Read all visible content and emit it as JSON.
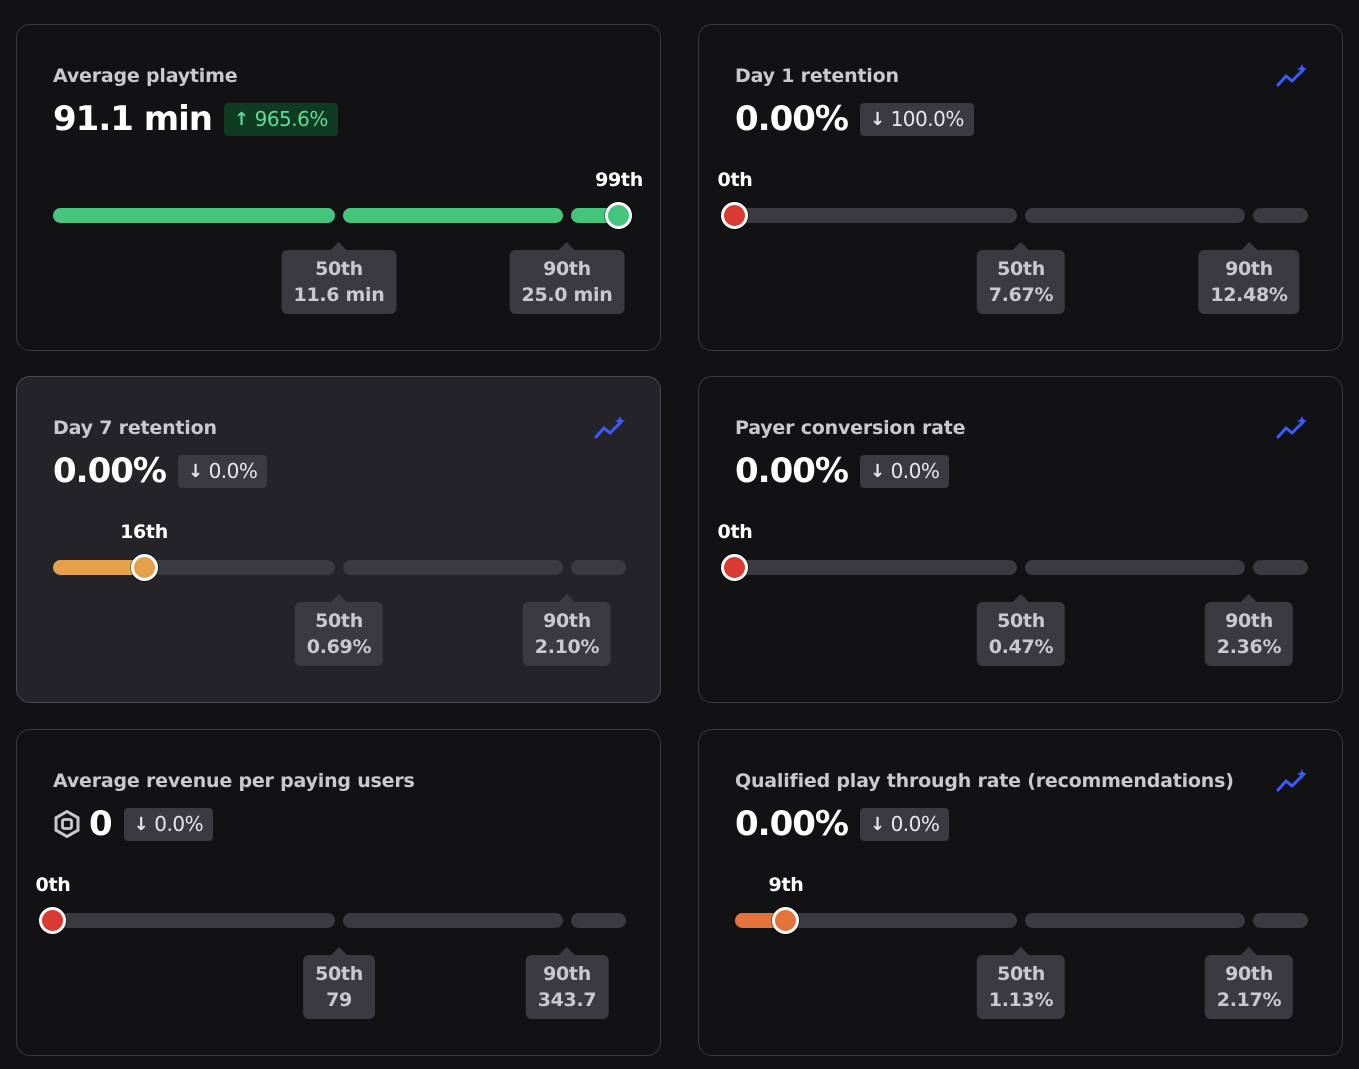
{
  "colors": {
    "green": "#44c47c",
    "red": "#d93b30",
    "amber": "#e5a04b",
    "orange": "#e3733a",
    "track": "#3a3a40",
    "trend_icon": "#3b5bff"
  },
  "cards": [
    {
      "title": "Average playtime",
      "value": "91.1 min",
      "delta": "965.6%",
      "delta_direction": "up",
      "percentile_label": "99th",
      "percentile_value": 99,
      "p50": {
        "label": "50th",
        "value": "11.6 min"
      },
      "p90": {
        "label": "90th",
        "value": "25.0 min"
      },
      "show_trend_icon": false
    },
    {
      "title": "Day 1 retention",
      "value": "0.00%",
      "delta": "100.0%",
      "delta_direction": "down",
      "percentile_label": "0th",
      "percentile_value": 0,
      "p50": {
        "label": "50th",
        "value": "7.67%"
      },
      "p90": {
        "label": "90th",
        "value": "12.48%"
      },
      "show_trend_icon": true
    },
    {
      "title": "Day 7 retention",
      "value": "0.00%",
      "delta": "0.0%",
      "delta_direction": "down",
      "percentile_label": "16th",
      "percentile_value": 16,
      "p50": {
        "label": "50th",
        "value": "0.69%"
      },
      "p90": {
        "label": "90th",
        "value": "2.10%"
      },
      "show_trend_icon": true
    },
    {
      "title": "Payer conversion rate",
      "value": "0.00%",
      "delta": "0.0%",
      "delta_direction": "down",
      "percentile_label": "0th",
      "percentile_value": 0,
      "p50": {
        "label": "50th",
        "value": "0.47%"
      },
      "p90": {
        "label": "90th",
        "value": "2.36%"
      },
      "show_trend_icon": true
    },
    {
      "title": "Average revenue per paying users",
      "value": "0",
      "value_icon": "robux-icon",
      "delta": "0.0%",
      "delta_direction": "down",
      "percentile_label": "0th",
      "percentile_value": 0,
      "p50": {
        "label": "50th",
        "value": "79"
      },
      "p90": {
        "label": "90th",
        "value": "343.7"
      },
      "show_trend_icon": false
    },
    {
      "title": "Qualified play through rate (recommendations)",
      "value": "0.00%",
      "delta": "0.0%",
      "delta_direction": "down",
      "percentile_label": "9th",
      "percentile_value": 9,
      "p50": {
        "label": "50th",
        "value": "1.13%"
      },
      "p90": {
        "label": "90th",
        "value": "2.17%"
      },
      "show_trend_icon": true
    }
  ]
}
